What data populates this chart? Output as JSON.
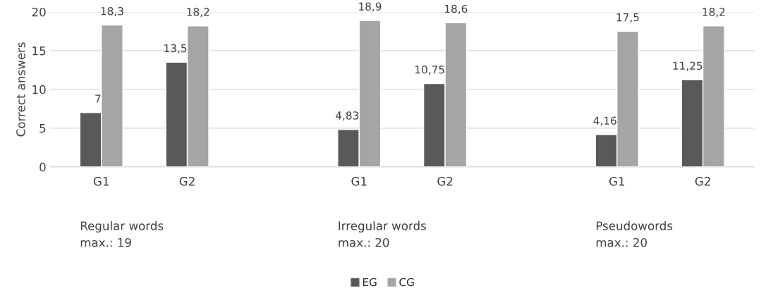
{
  "chart_data": {
    "type": "bar",
    "ylabel": "Correct answers",
    "categories": [
      "G1",
      "G2",
      null,
      "G1",
      "G2",
      null,
      "G1",
      "G2"
    ],
    "series": [
      {
        "name": "EG",
        "color": "#595959",
        "values": [
          7,
          13.5,
          null,
          4.83,
          10.75,
          null,
          4.16,
          11.25
        ],
        "value_labels": [
          "7",
          "13,5",
          null,
          "4,83",
          "10,75",
          null,
          "4,16",
          "11,25"
        ]
      },
      {
        "name": "CG",
        "color": "#a5a5a5",
        "values": [
          18.3,
          18.2,
          null,
          18.9,
          18.6,
          null,
          17.5,
          18.2
        ],
        "value_labels": [
          "18,3",
          "18,2",
          null,
          "18,9",
          "18,6",
          null,
          "17,5",
          "18,2"
        ]
      }
    ],
    "annotations": [
      "Regular words\nmax.: 19",
      "Irregular words\nmax.: 20",
      "Pseudowords\nmax.: 20"
    ],
    "ylim": [
      0,
      20
    ],
    "yticks": [
      0,
      5,
      10,
      15,
      20
    ],
    "grid": "y",
    "legend": "bottom"
  }
}
